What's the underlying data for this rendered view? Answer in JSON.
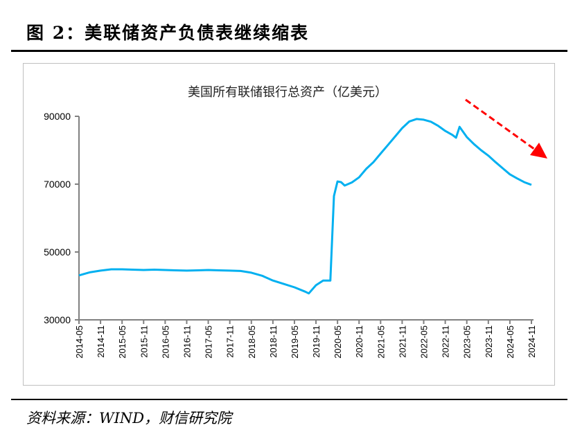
{
  "figure": {
    "title": "图 2：美联储资产负债表继续缩表",
    "source": "资料来源：WIND，财信研究院"
  },
  "chart_data": {
    "type": "line",
    "title": "美国所有联储银行总资产（亿美元）",
    "xlabel": "",
    "ylabel": "",
    "ylim": [
      30000,
      90000
    ],
    "yticks": [
      "30000",
      "50000",
      "70000",
      "90000"
    ],
    "xticks": [
      "2014-05",
      "2014-11",
      "2015-05",
      "2015-11",
      "2016-05",
      "2016-11",
      "2017-05",
      "2017-11",
      "2018-05",
      "2018-11",
      "2019-05",
      "2019-11",
      "2020-05",
      "2020-11",
      "2021-05",
      "2021-11",
      "2022-05",
      "2022-11",
      "2023-05",
      "2023-11",
      "2024-05",
      "2024-11"
    ],
    "grid": false,
    "line_color": "#00b0f0",
    "annotation": {
      "type": "dashed-arrow",
      "direction": "down-right",
      "color": "#ff0000"
    },
    "series": [
      {
        "x": [
          "2014-05",
          "2014-08",
          "2014-11",
          "2015-02",
          "2015-05",
          "2015-08",
          "2015-11",
          "2016-02",
          "2016-05",
          "2016-08",
          "2016-11",
          "2017-02",
          "2017-05",
          "2017-08",
          "2017-11",
          "2018-02",
          "2018-05",
          "2018-08",
          "2018-11",
          "2019-02",
          "2019-05",
          "2019-08",
          "2019-09",
          "2019-11",
          "2020-01",
          "2020-03",
          "2020-04",
          "2020-05",
          "2020-06",
          "2020-07",
          "2020-09",
          "2020-11",
          "2021-01",
          "2021-03",
          "2021-05",
          "2021-07",
          "2021-09",
          "2021-11",
          "2022-01",
          "2022-03",
          "2022-05",
          "2022-07",
          "2022-09",
          "2022-11",
          "2023-01",
          "2023-02",
          "2023-03",
          "2023-05",
          "2023-07",
          "2023-09",
          "2023-11",
          "2024-01",
          "2024-03",
          "2024-05",
          "2024-07",
          "2024-09",
          "2024-11"
        ],
        "y": [
          43100,
          44000,
          44500,
          44900,
          44900,
          44800,
          44700,
          44800,
          44700,
          44600,
          44500,
          44600,
          44700,
          44600,
          44500,
          44400,
          43900,
          43000,
          41600,
          40600,
          39600,
          38300,
          37800,
          40200,
          41600,
          41600,
          66500,
          70800,
          70600,
          69600,
          70500,
          72000,
          74500,
          76500,
          79000,
          81500,
          84000,
          86500,
          88500,
          89200,
          89000,
          88400,
          87200,
          85700,
          84500,
          83700,
          86900,
          83900,
          81800,
          80000,
          78400,
          76500,
          74700,
          72900,
          71700,
          70600,
          69800
        ]
      }
    ]
  }
}
